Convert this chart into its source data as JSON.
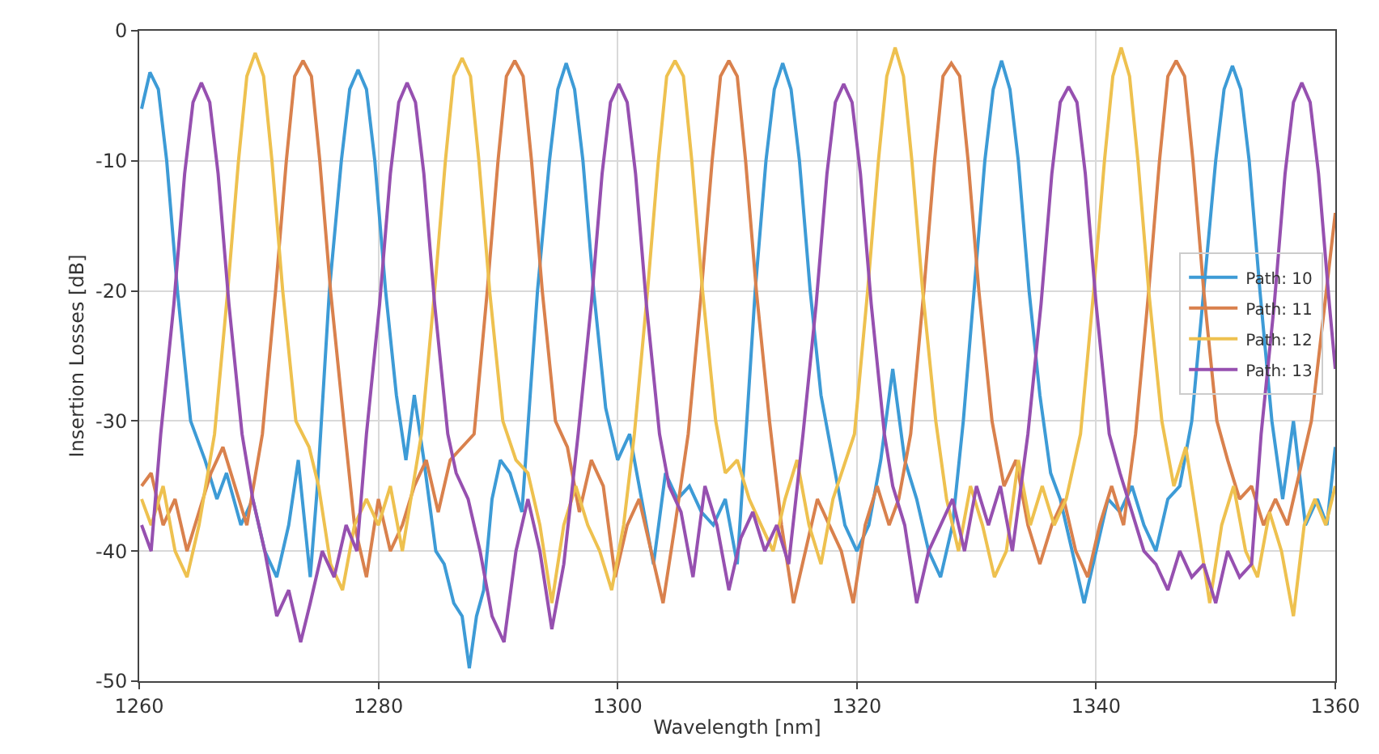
{
  "chart_data": {
    "type": "line",
    "xlabel": "Wavelength [nm]",
    "ylabel": "Insertion Losses [dB]",
    "xlim": [
      1260,
      1360
    ],
    "ylim": [
      -50,
      0
    ],
    "xticks": [
      1260,
      1280,
      1300,
      1320,
      1340,
      1360
    ],
    "yticks": [
      -50,
      -40,
      -30,
      -20,
      -10,
      0
    ],
    "grid": true,
    "legend": "right",
    "series": [
      {
        "name": "Path: 10",
        "color": "#3d9bd6",
        "x": [
          1260.2,
          1260.9,
          1261.6,
          1262.3,
          1263.2,
          1264.3,
          1265.5,
          1266.5,
          1267.3,
          1268.5,
          1269.5,
          1270.5,
          1271.5,
          1272.5,
          1273.3,
          1274.3,
          1274.9,
          1275.9,
          1276.9,
          1277.6,
          1278.3,
          1279.0,
          1279.7,
          1280.6,
          1281.5,
          1282.3,
          1283.0,
          1283.8,
          1284.8,
          1285.5,
          1286.3,
          1287.0,
          1287.6,
          1288.2,
          1288.8,
          1289.5,
          1290.2,
          1291,
          1292,
          1293.3,
          1294.3,
          1295.0,
          1295.7,
          1296.4,
          1297.1,
          1298.0,
          1299.0,
          1300,
          1301,
          1302,
          1303,
          1304,
          1305,
          1306,
          1307,
          1308,
          1309,
          1310,
          1310.8,
          1311.5,
          1312.4,
          1313.1,
          1313.8,
          1314.5,
          1315.2,
          1316.1,
          1317,
          1318,
          1319,
          1320,
          1321,
          1322,
          1323,
          1324,
          1325,
          1326,
          1327,
          1328,
          1328.9,
          1329.8,
          1330.7,
          1331.4,
          1332.1,
          1332.8,
          1333.5,
          1334.4,
          1335.3,
          1336.2,
          1337,
          1338,
          1339,
          1340,
          1341,
          1342,
          1343,
          1344,
          1345,
          1346,
          1347,
          1348,
          1349,
          1350,
          1350.7,
          1351.4,
          1352.1,
          1352.8,
          1353.7,
          1354.7,
          1355.6,
          1356.5,
          1357.5,
          1358.5,
          1359.3,
          1360
        ],
        "values": [
          -6,
          -3.2,
          -4.5,
          -10,
          -20,
          -30,
          -33,
          -36,
          -34,
          -38,
          -36,
          -40,
          -42,
          -38,
          -33,
          -42,
          -35,
          -20,
          -10,
          -4.5,
          -3,
          -4.5,
          -10,
          -20,
          -28,
          -33,
          -28,
          -33,
          -40,
          -41,
          -44,
          -45,
          -49,
          -45,
          -43,
          -36,
          -33,
          -34,
          -37,
          -20,
          -10,
          -4.5,
          -2.5,
          -4.5,
          -10,
          -20,
          -29,
          -33,
          -31,
          -36,
          -41,
          -34,
          -36,
          -35,
          -37,
          -38,
          -36,
          -41,
          -30,
          -20,
          -10,
          -4.5,
          -2.5,
          -4.5,
          -10,
          -20,
          -28,
          -33,
          -38,
          -40,
          -38,
          -33,
          -26,
          -33,
          -36,
          -40,
          -42,
          -38,
          -30,
          -20,
          -10,
          -4.5,
          -2.3,
          -4.5,
          -10,
          -20,
          -28,
          -34,
          -36,
          -40,
          -44,
          -40,
          -36,
          -37,
          -35,
          -38,
          -40,
          -36,
          -35,
          -30,
          -20,
          -10,
          -4.5,
          -2.7,
          -4.5,
          -10,
          -20,
          -30,
          -36,
          -30,
          -38,
          -36,
          -38,
          -32
        ]
      },
      {
        "name": "Path: 11",
        "color": "#d9814d",
        "x": [
          1260.2,
          1261,
          1262,
          1263,
          1264,
          1265,
          1266,
          1267,
          1268,
          1269,
          1270.3,
          1271.4,
          1272.3,
          1273.0,
          1273.7,
          1274.4,
          1275.1,
          1276.0,
          1277.1,
          1278,
          1279,
          1280,
          1281,
          1282,
          1283,
          1284,
          1285,
          1286,
          1288.0,
          1289.1,
          1290.0,
          1290.7,
          1291.4,
          1292.1,
          1292.8,
          1293.7,
          1294.8,
          1295.8,
          1296.8,
          1297.8,
          1298.8,
          1299.8,
          1300.8,
          1301.8,
          1302.8,
          1303.8,
          1304.8,
          1305.9,
          1307.0,
          1307.9,
          1308.6,
          1309.3,
          1310.0,
          1310.7,
          1311.6,
          1312.7,
          1313.7,
          1314.7,
          1315.7,
          1316.7,
          1317.7,
          1318.7,
          1319.7,
          1320.7,
          1321.7,
          1322.7,
          1323.5,
          1324.5,
          1325.6,
          1326.5,
          1327.2,
          1327.9,
          1328.6,
          1329.3,
          1330.2,
          1331.3,
          1332.3,
          1333.3,
          1334.3,
          1335.3,
          1336.3,
          1337.3,
          1338.3,
          1339.3,
          1340.3,
          1341.3,
          1342.3,
          1343.3,
          1344.4,
          1345.3,
          1346.0,
          1346.7,
          1347.4,
          1348.1,
          1349.0,
          1350.1,
          1351,
          1352,
          1353,
          1354,
          1355,
          1356,
          1357,
          1358,
          1359,
          1360
        ],
        "values": [
          -35,
          -34,
          -38,
          -36,
          -40,
          -37,
          -34,
          -32,
          -35,
          -38,
          -31,
          -20,
          -10,
          -3.5,
          -2.3,
          -3.5,
          -10,
          -20,
          -30,
          -38,
          -42,
          -36,
          -40,
          -38,
          -35,
          -33,
          -37,
          -33,
          -31,
          -20,
          -10,
          -3.5,
          -2.3,
          -3.5,
          -10,
          -20,
          -30,
          -32,
          -37,
          -33,
          -35,
          -42,
          -38,
          -36,
          -40,
          -44,
          -38,
          -31,
          -20,
          -10,
          -3.5,
          -2.3,
          -3.5,
          -10,
          -20,
          -30,
          -38,
          -44,
          -40,
          -36,
          -38,
          -40,
          -44,
          -38,
          -35,
          -38,
          -36,
          -31,
          -20,
          -10,
          -3.5,
          -2.5,
          -3.5,
          -10,
          -20,
          -30,
          -35,
          -33,
          -38,
          -41,
          -38,
          -36,
          -40,
          -42,
          -38,
          -35,
          -38,
          -31,
          -20,
          -10,
          -3.5,
          -2.3,
          -3.5,
          -10,
          -20,
          -30,
          -33,
          -36,
          -35,
          -38,
          -36,
          -38,
          -34,
          -30,
          -22,
          -14
        ]
      },
      {
        "name": "Path: 12",
        "color": "#eec14f",
        "x": [
          1260.2,
          1261,
          1262,
          1263,
          1264,
          1265,
          1266.3,
          1267.4,
          1268.3,
          1269.0,
          1269.7,
          1270.4,
          1271.1,
          1272.0,
          1273.1,
          1274.2,
          1275,
          1276,
          1277,
          1278,
          1279,
          1280,
          1281,
          1282,
          1283.6,
          1284.7,
          1285.6,
          1286.3,
          1287.0,
          1287.7,
          1288.4,
          1289.3,
          1290.4,
          1291.5,
          1292.5,
          1293.5,
          1294.5,
          1295.5,
          1296.5,
          1297.5,
          1298.5,
          1299.5,
          1300.5,
          1301.4,
          1302.5,
          1303.4,
          1304.1,
          1304.8,
          1305.5,
          1306.2,
          1307.1,
          1308.2,
          1309,
          1310,
          1311,
          1312,
          1313,
          1314,
          1315,
          1316,
          1317,
          1318,
          1319.8,
          1320.9,
          1321.8,
          1322.5,
          1323.2,
          1323.9,
          1324.6,
          1325.5,
          1326.6,
          1327.5,
          1328.5,
          1329.5,
          1330.5,
          1331.5,
          1332.5,
          1333.5,
          1334.5,
          1335.5,
          1336.5,
          1337.5,
          1338.7,
          1339.8,
          1340.7,
          1341.4,
          1342.1,
          1342.8,
          1343.5,
          1344.4,
          1345.5,
          1346.5,
          1347.5,
          1348.5,
          1349.5,
          1350.5,
          1351.5,
          1352.5,
          1353.5,
          1354.5,
          1355.5,
          1356.5,
          1357.4,
          1358.3,
          1359.2,
          1360
        ],
        "values": [
          -36,
          -38,
          -35,
          -40,
          -42,
          -38,
          -31,
          -20,
          -10,
          -3.5,
          -1.7,
          -3.5,
          -10,
          -20,
          -30,
          -32,
          -35,
          -41,
          -43,
          -38,
          -36,
          -38,
          -35,
          -40,
          -31,
          -20,
          -10,
          -3.5,
          -2.1,
          -3.5,
          -10,
          -20,
          -30,
          -33,
          -34,
          -38,
          -44,
          -38,
          -35,
          -38,
          -40,
          -43,
          -38,
          -31,
          -20,
          -10,
          -3.5,
          -2.3,
          -3.5,
          -10,
          -20,
          -30,
          -34,
          -33,
          -36,
          -38,
          -40,
          -36,
          -33,
          -38,
          -41,
          -36,
          -31,
          -20,
          -10,
          -3.5,
          -1.3,
          -3.5,
          -10,
          -20,
          -30,
          -36,
          -40,
          -35,
          -38,
          -42,
          -40,
          -33,
          -38,
          -35,
          -38,
          -36,
          -31,
          -20,
          -10,
          -3.5,
          -1.3,
          -3.5,
          -10,
          -20,
          -30,
          -35,
          -32,
          -38,
          -44,
          -38,
          -35,
          -40,
          -42,
          -37,
          -40,
          -45,
          -38,
          -36,
          -38,
          -35
        ]
      },
      {
        "name": "Path: 13",
        "color": "#9650b0",
        "x": [
          1260.2,
          1261,
          1261.8,
          1262.9,
          1263.8,
          1264.5,
          1265.2,
          1265.9,
          1266.6,
          1267.5,
          1268.6,
          1269.5,
          1270.5,
          1271.5,
          1272.5,
          1273.5,
          1274.3,
          1275.3,
          1276.3,
          1277.3,
          1278.2,
          1279.0,
          1280.1,
          1281.0,
          1281.7,
          1282.4,
          1283.1,
          1283.8,
          1284.7,
          1285.8,
          1286.5,
          1287.5,
          1288.5,
          1289.5,
          1290.5,
          1291.5,
          1292.5,
          1293.5,
          1294.5,
          1295.5,
          1296.7,
          1297.8,
          1298.7,
          1299.4,
          1300.1,
          1300.8,
          1301.5,
          1302.4,
          1303.5,
          1304.3,
          1305.3,
          1306.3,
          1307.3,
          1308.3,
          1309.3,
          1310.3,
          1311.3,
          1312.3,
          1313.3,
          1314.3,
          1315.5,
          1316.6,
          1317.5,
          1318.2,
          1318.9,
          1319.6,
          1320.3,
          1321.2,
          1322.3,
          1323,
          1324,
          1325,
          1326,
          1327,
          1328,
          1329,
          1330,
          1331,
          1332,
          1333,
          1334.3,
          1335.4,
          1336.3,
          1337.0,
          1337.7,
          1338.4,
          1339.1,
          1340.0,
          1341.1,
          1342,
          1343,
          1344,
          1345,
          1346,
          1347,
          1348,
          1349,
          1350,
          1351,
          1352,
          1353,
          1353.8,
          1354.9,
          1355.8,
          1356.5,
          1357.2,
          1357.9,
          1358.6,
          1359.5,
          1360
        ],
        "values": [
          -38,
          -40,
          -31,
          -21,
          -11,
          -5.5,
          -4,
          -5.5,
          -11,
          -21,
          -31,
          -36,
          -40,
          -45,
          -43,
          -47,
          -44,
          -40,
          -42,
          -38,
          -40,
          -31,
          -21,
          -11,
          -5.5,
          -4,
          -5.5,
          -11,
          -21,
          -31,
          -34,
          -36,
          -40,
          -45,
          -47,
          -40,
          -36,
          -40,
          -46,
          -41,
          -31,
          -21,
          -11,
          -5.5,
          -4.1,
          -5.5,
          -11,
          -21,
          -31,
          -35,
          -37,
          -42,
          -35,
          -38,
          -43,
          -39,
          -37,
          -40,
          -38,
          -41,
          -31,
          -21,
          -11,
          -5.5,
          -4.1,
          -5.5,
          -11,
          -21,
          -31,
          -35,
          -38,
          -44,
          -40,
          -38,
          -36,
          -40,
          -35,
          -38,
          -35,
          -40,
          -31,
          -21,
          -11,
          -5.5,
          -4.3,
          -5.5,
          -11,
          -21,
          -31,
          -34,
          -37,
          -40,
          -41,
          -43,
          -40,
          -42,
          -41,
          -44,
          -40,
          -42,
          -41,
          -31,
          -21,
          -11,
          -5.5,
          -4,
          -5.5,
          -11,
          -21,
          -26
        ]
      }
    ]
  }
}
